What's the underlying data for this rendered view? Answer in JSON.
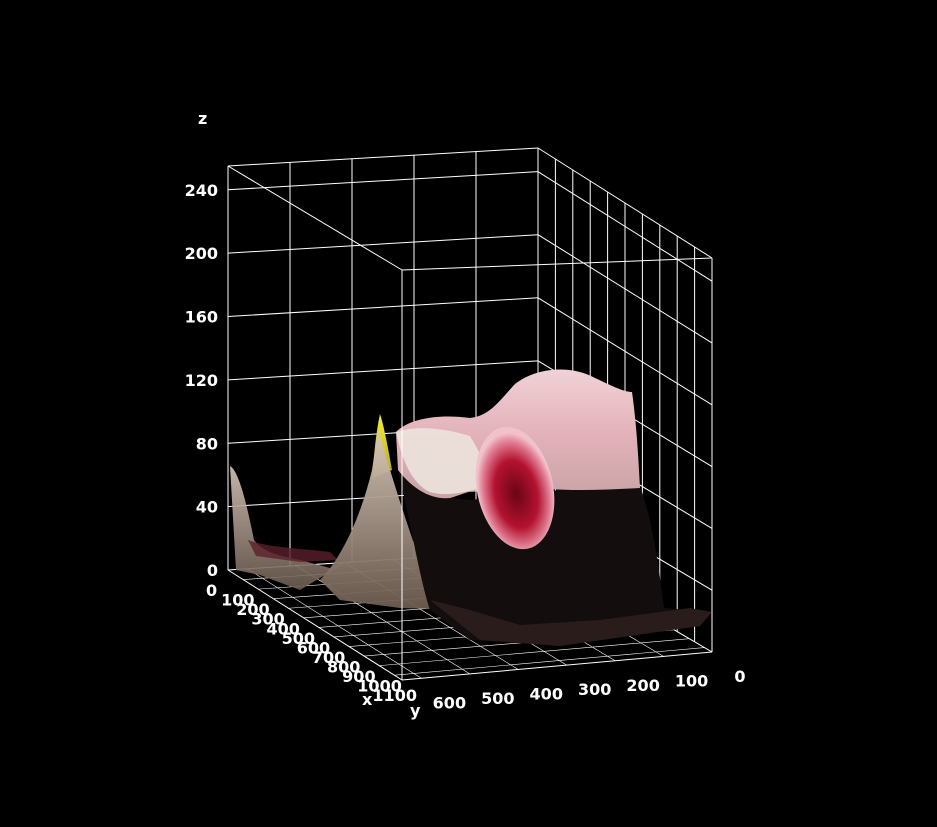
{
  "chart_data": {
    "type": "surface",
    "axes": {
      "x": {
        "label": "x",
        "ticks": [
          0,
          100,
          200,
          300,
          400,
          500,
          600,
          700,
          800,
          900,
          1000,
          1100
        ]
      },
      "y": {
        "label": "y",
        "ticks": [
          0,
          100,
          200,
          300,
          400,
          500,
          600
        ]
      },
      "z": {
        "label": "z",
        "ticks": [
          0,
          40,
          80,
          120,
          160,
          200,
          240
        ],
        "range": [
          0,
          255
        ]
      }
    },
    "grid": true,
    "background": "#000000",
    "grid_color": "#ffffff",
    "surface_colors": {
      "pink": "#e6b8bf",
      "light": "#efe6e0",
      "dark": "#15100f",
      "red": "#a8102a",
      "tan": "#b8a594",
      "yellow": "#f2e81f"
    }
  }
}
